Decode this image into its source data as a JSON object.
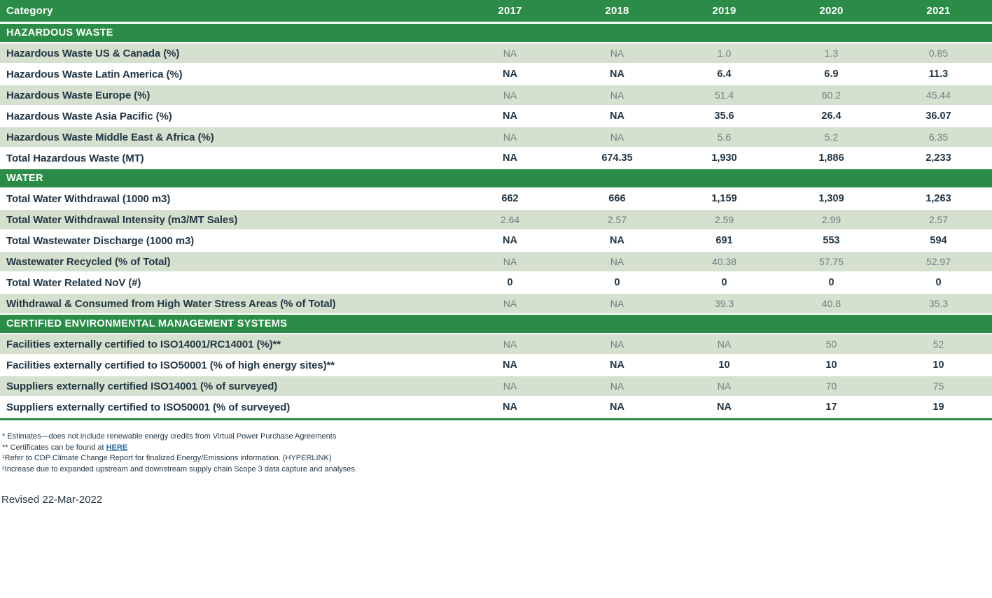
{
  "header": {
    "category_label": "Category",
    "years": [
      "2017",
      "2018",
      "2019",
      "2020",
      "2021"
    ]
  },
  "sections": [
    {
      "title": "HAZARDOUS WASTE",
      "rows": [
        {
          "label": "Hazardous Waste US & Canada (%)",
          "values": [
            "NA",
            "NA",
            "1.0",
            "1.3",
            "0.85"
          ]
        },
        {
          "label": "Hazardous Waste Latin America (%)",
          "values": [
            "NA",
            "NA",
            "6.4",
            "6.9",
            "11.3"
          ]
        },
        {
          "label": "Hazardous Waste Europe (%)",
          "values": [
            "NA",
            "NA",
            "51.4",
            "60.2",
            "45.44"
          ]
        },
        {
          "label": "Hazardous Waste Asia Pacific (%)",
          "values": [
            "NA",
            "NA",
            "35.6",
            "26.4",
            "36.07"
          ]
        },
        {
          "label": "Hazardous Waste Middle East & Africa (%)",
          "values": [
            "NA",
            "NA",
            "5.6",
            "5.2",
            "6.35"
          ]
        },
        {
          "label": "Total Hazardous Waste (MT)",
          "values": [
            "NA",
            "674.35",
            "1,930",
            "1,886",
            "2,233"
          ]
        }
      ]
    },
    {
      "title": "WATER",
      "rows": [
        {
          "label": "Total Water Withdrawal (1000 m3)",
          "values": [
            "662",
            "666",
            "1,159",
            "1,309",
            "1,263"
          ]
        },
        {
          "label": "Total Water Withdrawal Intensity (m3/MT Sales)",
          "values": [
            "2.64",
            "2.57",
            "2.59",
            "2.99",
            "2.57"
          ]
        },
        {
          "label": "Total Wastewater Discharge (1000 m3)",
          "values": [
            "NA",
            "NA",
            "691",
            "553",
            "594"
          ]
        },
        {
          "label": "Wastewater Recycled (% of Total)",
          "values": [
            "NA",
            "NA",
            "40.38",
            "57.75",
            "52.97"
          ]
        },
        {
          "label": "Total Water Related NoV (#)",
          "values": [
            "0",
            "0",
            "0",
            "0",
            "0"
          ]
        },
        {
          "label": "Withdrawal & Consumed from High Water Stress Areas (% of Total)",
          "values": [
            "NA",
            "NA",
            "39.3",
            "40.8",
            "35.3"
          ]
        }
      ]
    },
    {
      "title": "CERTIFIED ENVIRONMENTAL MANAGEMENT SYSTEMS",
      "rows": [
        {
          "label": "Facilities externally certified to ISO14001/RC14001 (%)**",
          "values": [
            "NA",
            "NA",
            "NA",
            "50",
            "52"
          ]
        },
        {
          "label": "Facilities externally certified to ISO50001 (% of high energy sites)**",
          "values": [
            "NA",
            "NA",
            "10",
            "10",
            "10"
          ]
        },
        {
          "label": "Suppliers externally certified ISO14001 (% of surveyed)",
          "values": [
            "NA",
            "NA",
            "NA",
            "70",
            "75"
          ]
        },
        {
          "label": "Suppliers externally certified to ISO50001 (% of surveyed)",
          "values": [
            "NA",
            "NA",
            "NA",
            "17",
            "19"
          ]
        }
      ]
    }
  ],
  "footnotes": {
    "line1": "* Estimates—does not include renewable energy credits from Virtual Power Purchase Agreements",
    "line2_prefix": "** Certificates can be found at ",
    "line2_link": "HERE",
    "line3": "¹Refer to CDP Climate Change Report for finalized Energy/Emissions information. (HYPERLINK)",
    "line4": "²Increase due to expanded upstream and downstream supply chain Scope 3 data capture and analyses."
  },
  "revised": "Revised 22-Mar-2022",
  "colors": {
    "header_green": "#2a8c46",
    "row_light_green": "#d6e0ce",
    "text_dark": "#233746",
    "value_gray": "#6c7e81",
    "link_blue": "#2b6da8"
  }
}
